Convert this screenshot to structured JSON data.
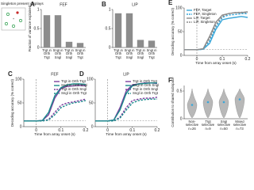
{
  "inset": {
    "title": "Singleton present displays"
  },
  "chart_data": [
    {
      "type": "bar",
      "panel": "A",
      "title": "FEF",
      "ylabel": "Fraction of variance explained",
      "categories": [
        "Trgt in Orth Trgt",
        "Sngl in Orth Sngl",
        "Trgt in Orth Sngl",
        "Sngl in Orth Trgt"
      ],
      "values": [
        0.85,
        0.85,
        0.15,
        0.12
      ],
      "color": "#8c8c8c",
      "ylim": [
        0,
        1
      ],
      "yticks": [
        0,
        0.5,
        1
      ]
    },
    {
      "type": "bar",
      "panel": "B",
      "title": "LIP",
      "categories": [
        "Trgt in Orth Trgt",
        "Sngl in Orth Sngl",
        "Trgt in Orth Sngl",
        "Sngl in Orth Trgt"
      ],
      "values": [
        0.9,
        0.9,
        0.2,
        0.18
      ],
      "color": "#8c8c8c",
      "ylim": [
        0,
        1
      ],
      "yticks": [
        0,
        0.5,
        1
      ]
    },
    {
      "type": "line",
      "panel": "C",
      "title": "FEF",
      "ylabel": "Decoding accuracy (% correct)",
      "xlabel": "Time from array onset (s)",
      "x": [
        -0.05,
        -0.025,
        0,
        0.025,
        0.05,
        0.075,
        0.1,
        0.125,
        0.15,
        0.175,
        0.2
      ],
      "series": [
        {
          "name": "Trgt in Orth Trgt",
          "color": "#7b3f9e",
          "dash": false,
          "values": [
            12,
            12,
            12,
            13,
            25,
            60,
            80,
            85,
            86,
            87,
            86
          ]
        },
        {
          "name": "Sngl in Orth Sngl",
          "color": "#1a8c8c",
          "dash": false,
          "values": [
            12,
            12,
            12,
            13,
            30,
            65,
            82,
            88,
            90,
            90,
            89
          ]
        },
        {
          "name": "Trgt in Orth Sngl",
          "color": "#7b3f9e",
          "dash": true,
          "values": [
            12,
            12,
            12,
            12,
            15,
            30,
            45,
            50,
            52,
            55,
            58
          ]
        },
        {
          "name": "Sngl in Orth Trgt",
          "color": "#1a8c8c",
          "dash": true,
          "values": [
            12,
            12,
            12,
            12,
            14,
            25,
            40,
            46,
            50,
            52,
            55
          ]
        }
      ],
      "xlim": [
        -0.05,
        0.2
      ],
      "xticks": [
        0,
        0.1,
        0.2
      ],
      "ylim": [
        0,
        100
      ],
      "yticks": [
        0,
        50,
        100
      ],
      "vline": 0,
      "hline": 12.5,
      "legend": "upper right"
    },
    {
      "type": "line",
      "panel": "D",
      "title": "LIP",
      "xlabel": "Time from array onset (s)",
      "x": [
        -0.05,
        -0.025,
        0,
        0.025,
        0.05,
        0.075,
        0.1,
        0.125,
        0.15,
        0.175,
        0.2
      ],
      "series": [
        {
          "name": "Trgt in Orth Trgt",
          "color": "#7b3f9e",
          "dash": false,
          "values": [
            12,
            12,
            12,
            14,
            40,
            75,
            88,
            90,
            92,
            92,
            91
          ]
        },
        {
          "name": "Sngl in Orth Sngl",
          "color": "#1a8c8c",
          "dash": false,
          "values": [
            12,
            12,
            12,
            14,
            35,
            70,
            86,
            90,
            91,
            92,
            92
          ]
        },
        {
          "name": "Trgt in Orth Sngl",
          "color": "#7b3f9e",
          "dash": true,
          "values": [
            12,
            12,
            12,
            12,
            20,
            40,
            55,
            58,
            60,
            60,
            62
          ]
        },
        {
          "name": "Sngl in Orth Trgt",
          "color": "#1a8c8c",
          "dash": true,
          "values": [
            12,
            12,
            12,
            12,
            18,
            35,
            50,
            55,
            57,
            58,
            58
          ]
        }
      ],
      "xlim": [
        -0.05,
        0.2
      ],
      "xticks": [
        0,
        0.1,
        0.2
      ],
      "ylim": [
        0,
        100
      ],
      "yticks": [
        0,
        50,
        100
      ],
      "vline": 0,
      "hline": 12.5,
      "legend": "upper right"
    },
    {
      "type": "line",
      "panel": "E",
      "ylabel": "Decoding accuracy (% correct)",
      "xlabel": "Time from array onset (s)",
      "x": [
        -0.05,
        -0.025,
        0,
        0.025,
        0.05,
        0.075,
        0.1,
        0.125,
        0.15,
        0.175,
        0.2
      ],
      "series": [
        {
          "name": "FEF, Target",
          "color": "#3aa7d9",
          "dash": false,
          "values": [
            12,
            12,
            12,
            13,
            25,
            55,
            75,
            78,
            80,
            82,
            80
          ]
        },
        {
          "name": "FEF, Singleton",
          "color": "#3aa7d9",
          "dash": true,
          "values": [
            12,
            12,
            12,
            13,
            30,
            60,
            80,
            85,
            86,
            88,
            88
          ]
        },
        {
          "name": "LIP, Target",
          "color": "#8c8c8c",
          "dash": false,
          "values": [
            12,
            12,
            12,
            14,
            40,
            70,
            85,
            88,
            90,
            90,
            92
          ]
        },
        {
          "name": "LIP, Singleton",
          "color": "#8c8c8c",
          "dash": true,
          "values": [
            12,
            12,
            12,
            14,
            35,
            65,
            82,
            88,
            90,
            91,
            90
          ]
        }
      ],
      "xlim": [
        -0.05,
        0.2
      ],
      "xticks": [
        0,
        0.1,
        0.2
      ],
      "ylim": [
        0,
        100
      ],
      "yticks": [
        0,
        50,
        100
      ],
      "vline": 0,
      "hline": 12.5,
      "legend": "upper left"
    },
    {
      "type": "violin",
      "panel": "F",
      "ylabel": "Contribution to shared subspace",
      "categories": [
        "Non-selective n=26",
        "Trgt selective n=9",
        "Sngl selective n=50",
        "Mixed selective n=73"
      ],
      "values": [
        0.25,
        0.3,
        0.3,
        0.35
      ],
      "color": "#9a9a9a",
      "ylim": [
        0,
        0.6
      ],
      "yticks": [
        0,
        0.5
      ]
    }
  ]
}
